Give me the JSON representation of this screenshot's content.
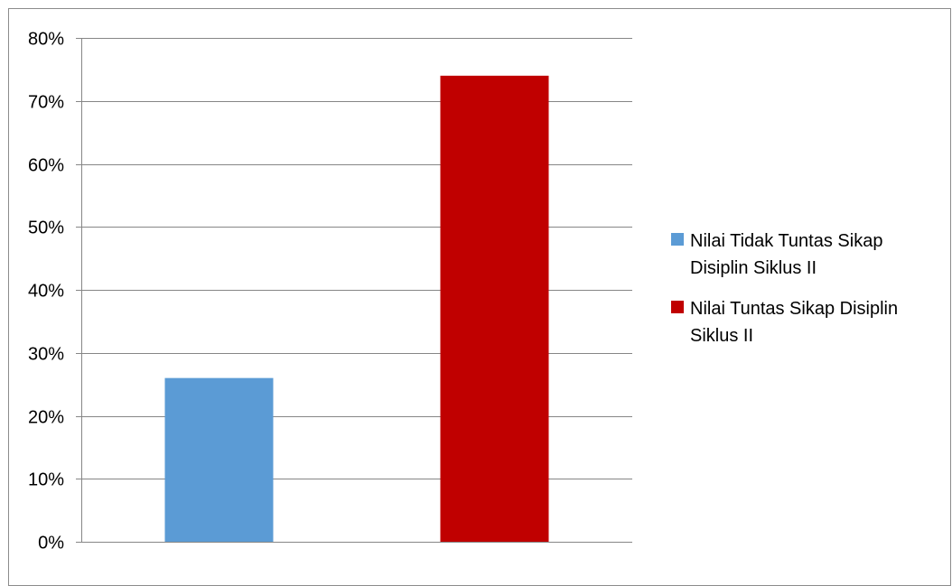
{
  "chart_data": {
    "type": "bar",
    "categories": [
      ""
    ],
    "series": [
      {
        "name": "Nilai Tidak Tuntas Sikap Disiplin Siklus II",
        "values": [
          26
        ],
        "color": "#5b9bd5"
      },
      {
        "name": "Nilai Tuntas Sikap Disiplin Siklus II",
        "values": [
          74
        ],
        "color": "#c00000"
      }
    ],
    "ylim": [
      0,
      80
    ],
    "yticks": [
      0,
      10,
      20,
      30,
      40,
      50,
      60,
      70,
      80
    ],
    "ytick_labels": [
      "0%",
      "10%",
      "20%",
      "30%",
      "40%",
      "50%",
      "60%",
      "70%",
      "80%"
    ],
    "grid": true,
    "legend_position": "right",
    "legend": [
      {
        "lines": [
          "Nilai Tidak Tuntas Sikap",
          "Disiplin Siklus II"
        ],
        "color": "#5b9bd5"
      },
      {
        "lines": [
          "Nilai Tuntas Sikap Disiplin",
          "Siklus II"
        ],
        "color": "#c00000"
      }
    ],
    "gridline_color": "#868686",
    "axis_color": "#868686"
  }
}
